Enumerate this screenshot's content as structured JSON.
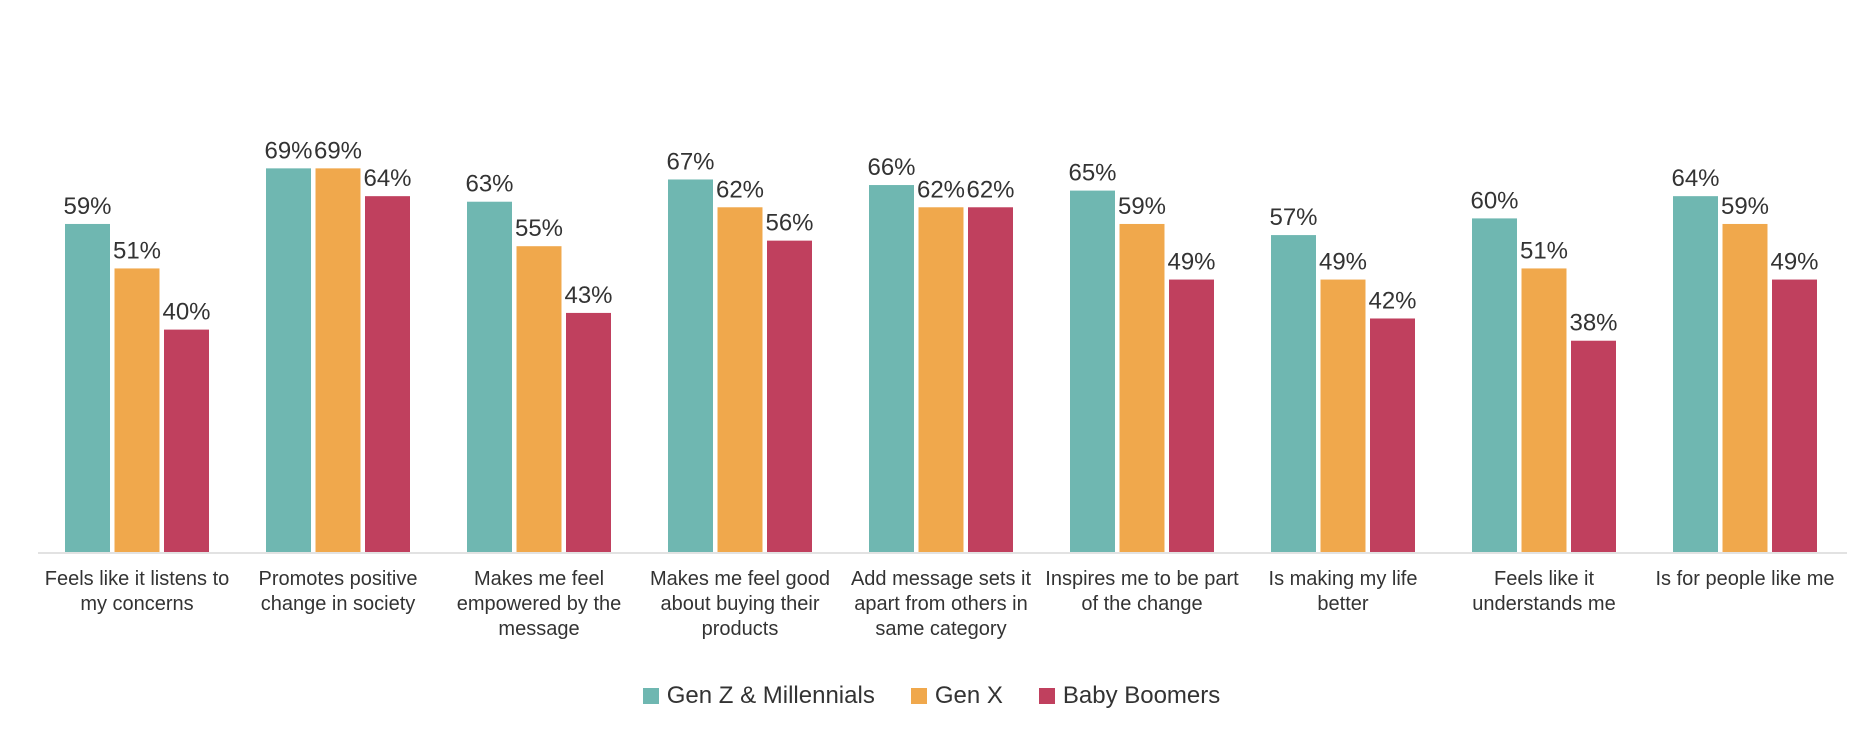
{
  "chart_data": {
    "type": "bar",
    "categories": [
      "Feels like it listens to my concerns",
      "Promotes positive change in society",
      "Makes me feel empowered by the message",
      "Makes me feel good about buying their products",
      "Add message sets it apart from others in same category",
      "Inspires me to be part of the change",
      "Is making my life better",
      "Feels like it understands me",
      "Is for people like me"
    ],
    "series": [
      {
        "name": "Gen Z & Millennials",
        "color": "#6fb7b1",
        "values": [
          59,
          69,
          63,
          67,
          66,
          65,
          57,
          60,
          64
        ],
        "value_labels": [
          "59%",
          "69%",
          "63%",
          "67%",
          "66%",
          "65%",
          "57%",
          "60%",
          "64%"
        ]
      },
      {
        "name": "Gen X",
        "color": "#f0a84c",
        "values": [
          51,
          69,
          55,
          62,
          62,
          59,
          49,
          51,
          59
        ],
        "value_labels": [
          "51%",
          "69%",
          "55%",
          "62%",
          "62%",
          "59%",
          "49%",
          "51%",
          "59%"
        ]
      },
      {
        "name": "Baby Boomers",
        "color": "#c0405e",
        "values": [
          40,
          64,
          43,
          56,
          62,
          49,
          42,
          38,
          49
        ],
        "value_labels": [
          "40%",
          "64%",
          "43%",
          "56%",
          "62%",
          "49%",
          "42%",
          "38%",
          "49%"
        ]
      }
    ],
    "legend": "bottom"
  }
}
